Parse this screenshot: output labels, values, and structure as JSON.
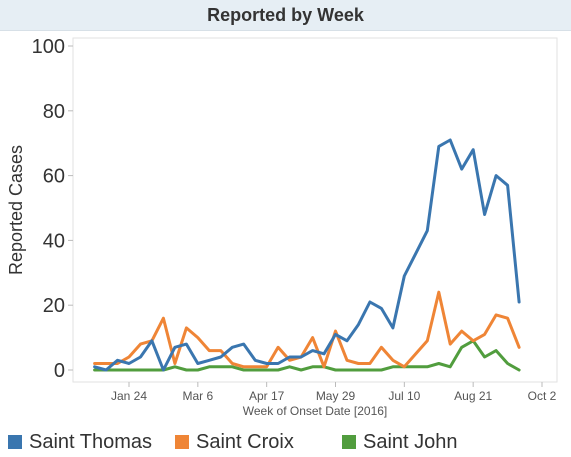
{
  "chart_data": {
    "type": "line",
    "title": "Reported by Week",
    "xlabel": "Week of Onset Date [2016]",
    "ylabel": "Reported Cases",
    "ylim": [
      0,
      100
    ],
    "y_ticks": [
      0,
      20,
      40,
      60,
      80,
      100
    ],
    "x_ticks": [
      "Jan 24",
      "Mar 6",
      "Apr 17",
      "May 29",
      "Jul 10",
      "Aug 21",
      "Oct 2"
    ],
    "x": [
      "2016-01-03",
      "2016-01-10",
      "2016-01-17",
      "2016-01-24",
      "2016-01-31",
      "2016-02-07",
      "2016-02-14",
      "2016-02-21",
      "2016-02-28",
      "2016-03-06",
      "2016-03-13",
      "2016-03-20",
      "2016-03-27",
      "2016-04-03",
      "2016-04-10",
      "2016-04-17",
      "2016-04-24",
      "2016-05-01",
      "2016-05-08",
      "2016-05-15",
      "2016-05-22",
      "2016-05-29",
      "2016-06-05",
      "2016-06-12",
      "2016-06-19",
      "2016-06-26",
      "2016-07-03",
      "2016-07-10",
      "2016-07-17",
      "2016-07-24",
      "2016-07-31",
      "2016-08-07",
      "2016-08-14",
      "2016-08-21",
      "2016-08-28",
      "2016-09-04",
      "2016-09-11",
      "2016-09-18"
    ],
    "grid": false,
    "legend_position": "bottom",
    "series": [
      {
        "name": "Saint Thomas",
        "color": "#3a76af",
        "values": [
          1,
          0,
          3,
          2,
          4,
          9,
          0,
          7,
          8,
          2,
          3,
          4,
          7,
          8,
          3,
          2,
          2,
          4,
          4,
          6,
          5,
          11,
          9,
          14,
          21,
          19,
          13,
          29,
          36,
          43,
          69,
          71,
          62,
          68,
          48,
          60,
          57,
          21
        ]
      },
      {
        "name": "Saint Croix",
        "color": "#ef8536",
        "values": [
          2,
          2,
          2,
          4,
          8,
          9,
          16,
          2,
          13,
          10,
          6,
          6,
          2,
          1,
          1,
          1,
          7,
          3,
          4,
          10,
          1,
          12,
          3,
          2,
          2,
          7,
          3,
          1,
          5,
          9,
          24,
          8,
          12,
          9,
          11,
          17,
          16,
          7
        ]
      },
      {
        "name": "Saint John",
        "color": "#519d3e",
        "values": [
          0,
          0,
          0,
          0,
          0,
          0,
          0,
          1,
          0,
          0,
          1,
          1,
          1,
          0,
          0,
          0,
          0,
          1,
          0,
          1,
          1,
          0,
          0,
          0,
          0,
          0,
          1,
          1,
          1,
          1,
          2,
          1,
          7,
          9,
          4,
          6,
          2,
          0
        ]
      }
    ]
  }
}
